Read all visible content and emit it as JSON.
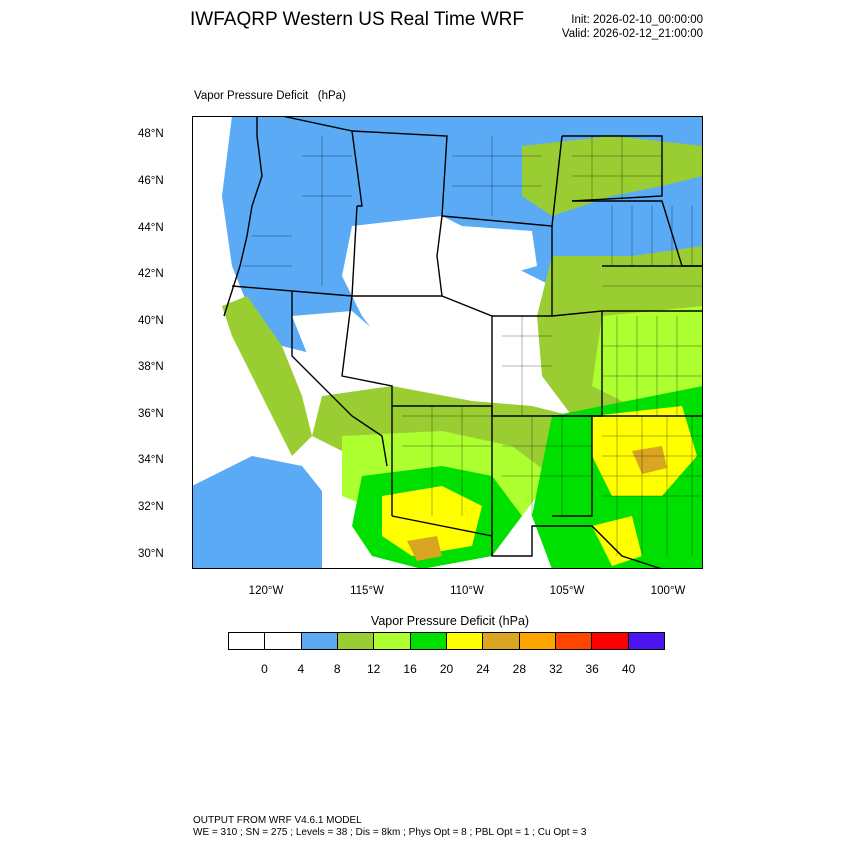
{
  "header": {
    "title": "IWFAQRP Western US Real Time WRF",
    "init": "Init: 2026-02-10_00:00:00",
    "valid": "Valid: 2026-02-12_21:00:00"
  },
  "plot": {
    "label": "Vapor Pressure Deficit   (hPa)",
    "lat_ticks": [
      "48°N",
      "46°N",
      "44°N",
      "42°N",
      "40°N",
      "38°N",
      "36°N",
      "34°N",
      "32°N",
      "30°N"
    ],
    "lon_ticks": [
      "120°W",
      "115°W",
      "110°W",
      "105°W",
      "100°W"
    ]
  },
  "colorbar": {
    "title": "Vapor Pressure Deficit  (hPa)",
    "labels": [
      "0",
      "4",
      "8",
      "12",
      "16",
      "20",
      "24",
      "28",
      "32",
      "36",
      "40"
    ],
    "colors": [
      "#ffffff",
      "#ffffff",
      "#5aaaf5",
      "#9acd32",
      "#adff2f",
      "#00e000",
      "#ffff00",
      "#daa520",
      "#ffa500",
      "#ff4500",
      "#ff0000",
      "#4b14f0"
    ]
  },
  "footer": {
    "line1": "OUTPUT FROM WRF V4.6.1 MODEL",
    "line2": "WE = 310 ; SN = 275 ; Levels = 38 ; Dis = 8km ; Phys Opt = 8 ; PBL Opt = 1 ; Cu Opt = 3"
  }
}
